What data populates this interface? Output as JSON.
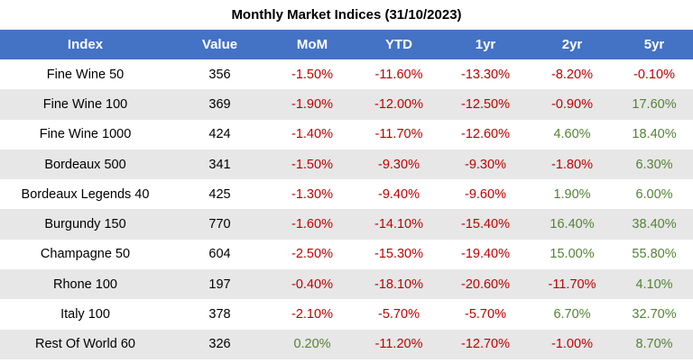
{
  "chart_data": {
    "type": "table",
    "title": "Monthly Market Indices (31/10/2023)",
    "columns": [
      "Index",
      "Value",
      "MoM",
      "YTD",
      "1yr",
      "2yr",
      "5yr"
    ],
    "rows": [
      [
        "Fine Wine 50",
        "356",
        "-1.50%",
        "-11.60%",
        "-13.30%",
        "-8.20%",
        "-0.10%"
      ],
      [
        "Fine Wine 100",
        "369",
        "-1.90%",
        "-12.00%",
        "-12.50%",
        "-0.90%",
        "17.60%"
      ],
      [
        "Fine Wine 1000",
        "424",
        "-1.40%",
        "-11.70%",
        "-12.60%",
        "4.60%",
        "18.40%"
      ],
      [
        "Bordeaux 500",
        "341",
        "-1.50%",
        "-9.30%",
        "-9.30%",
        "-1.80%",
        "6.30%"
      ],
      [
        "Bordeaux Legends 40",
        "425",
        "-1.30%",
        "-9.40%",
        "-9.60%",
        "1.90%",
        "6.00%"
      ],
      [
        "Burgundy 150",
        "770",
        "-1.60%",
        "-14.10%",
        "-15.40%",
        "16.40%",
        "38.40%"
      ],
      [
        "Champagne 50",
        "604",
        "-2.50%",
        "-15.30%",
        "-19.40%",
        "15.00%",
        "55.80%"
      ],
      [
        "Rhone 100",
        "197",
        "-0.40%",
        "-18.10%",
        "-20.60%",
        "-11.70%",
        "4.10%"
      ],
      [
        "Italy 100",
        "378",
        "-2.10%",
        "-5.70%",
        "-5.70%",
        "6.70%",
        "32.70%"
      ],
      [
        "Rest Of World 60",
        "326",
        "0.20%",
        "-11.20%",
        "-12.70%",
        "-1.00%",
        "8.70%"
      ]
    ],
    "colors": {
      "header_bg": "#4472c4",
      "header_text": "#ffffff",
      "negative": "#c00000",
      "positive": "#548235",
      "band": "#e7e7e7"
    }
  }
}
